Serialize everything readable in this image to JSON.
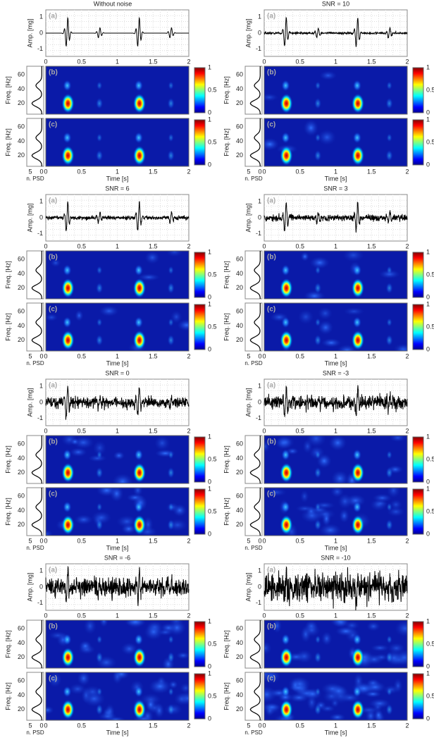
{
  "panel_letters": [
    "(a)",
    "(b)",
    "(c)"
  ],
  "axes": {
    "amp_label": "Amp. [mg]",
    "freq_label": "Freq. [Hz]",
    "time_label": "Time [s]",
    "psd_label": "n. PSD",
    "amp_ticks": [
      1,
      0,
      -1
    ],
    "time_ticks": [
      0,
      0.5,
      1,
      1.5,
      2
    ],
    "freq_ticks": [
      20,
      40,
      60
    ],
    "colorbar_ticks": [
      0,
      0.5,
      1
    ],
    "psd_ticks": [
      5,
      0
    ]
  },
  "blocks": [
    {
      "title": "Without noise"
    },
    {
      "title": "SNR = 10"
    },
    {
      "title": "SNR = 6"
    },
    {
      "title": "SNR = 3"
    },
    {
      "title": "SNR = 0"
    },
    {
      "title": "SNR = -3"
    },
    {
      "title": "SNR = -6"
    },
    {
      "title": "SNR = -10"
    }
  ]
}
